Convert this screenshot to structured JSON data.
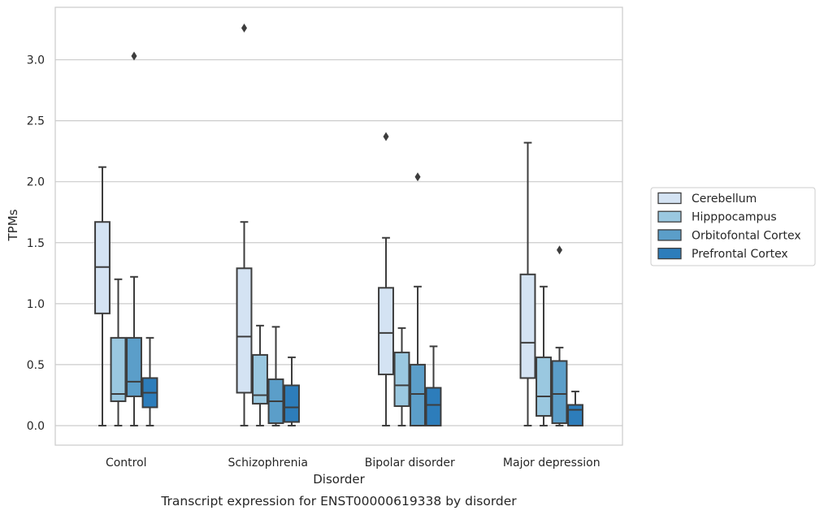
{
  "chart_data": {
    "type": "box",
    "xlabel": "Disorder",
    "ylabel": "TPMs",
    "caption": "Transcript expression for ENST00000619338 by disorder",
    "categories": [
      "Control",
      "Schizophrenia",
      "Bipolar disorder",
      "Major depression"
    ],
    "ylim": [
      -0.16,
      3.43
    ],
    "yticks": [
      "0.0",
      "0.5",
      "1.0",
      "1.5",
      "2.0",
      "2.5",
      "3.0"
    ],
    "grid": "horizontal",
    "legend_position": "right",
    "series": [
      {
        "name": "Cerebellum",
        "color": "#d4e3f3",
        "boxes": [
          {
            "whisker_low": 0.0,
            "q1": 0.92,
            "median": 1.3,
            "q3": 1.67,
            "whisker_high": 2.12,
            "outliers": []
          },
          {
            "whisker_low": 0.0,
            "q1": 0.27,
            "median": 0.73,
            "q3": 1.29,
            "whisker_high": 1.67,
            "outliers": [
              3.26
            ]
          },
          {
            "whisker_low": 0.0,
            "q1": 0.42,
            "median": 0.76,
            "q3": 1.13,
            "whisker_high": 1.54,
            "outliers": [
              2.37
            ]
          },
          {
            "whisker_low": 0.0,
            "q1": 0.39,
            "median": 0.68,
            "q3": 1.24,
            "whisker_high": 2.32,
            "outliers": []
          }
        ]
      },
      {
        "name": "Hipppocampus",
        "color": "#9ac8e0",
        "boxes": [
          {
            "whisker_low": 0.0,
            "q1": 0.2,
            "median": 0.26,
            "q3": 0.72,
            "whisker_high": 1.2,
            "outliers": []
          },
          {
            "whisker_low": 0.0,
            "q1": 0.18,
            "median": 0.25,
            "q3": 0.58,
            "whisker_high": 0.82,
            "outliers": []
          },
          {
            "whisker_low": 0.0,
            "q1": 0.16,
            "median": 0.33,
            "q3": 0.6,
            "whisker_high": 0.8,
            "outliers": []
          },
          {
            "whisker_low": 0.0,
            "q1": 0.08,
            "median": 0.24,
            "q3": 0.56,
            "whisker_high": 1.14,
            "outliers": []
          }
        ]
      },
      {
        "name": "Orbitofontal Cortex",
        "color": "#5b9ec9",
        "boxes": [
          {
            "whisker_low": 0.0,
            "q1": 0.24,
            "median": 0.36,
            "q3": 0.72,
            "whisker_high": 1.22,
            "outliers": [
              3.03
            ]
          },
          {
            "whisker_low": 0.0,
            "q1": 0.02,
            "median": 0.2,
            "q3": 0.38,
            "whisker_high": 0.81,
            "outliers": []
          },
          {
            "whisker_low": 0.0,
            "q1": 0.0,
            "median": 0.26,
            "q3": 0.5,
            "whisker_high": 1.14,
            "outliers": [
              2.04
            ]
          },
          {
            "whisker_low": 0.0,
            "q1": 0.02,
            "median": 0.26,
            "q3": 0.53,
            "whisker_high": 0.64,
            "outliers": [
              1.44
            ]
          }
        ]
      },
      {
        "name": "Prefrontal Cortex",
        "color": "#2d7dbb",
        "boxes": [
          {
            "whisker_low": 0.0,
            "q1": 0.15,
            "median": 0.27,
            "q3": 0.39,
            "whisker_high": 0.72,
            "outliers": []
          },
          {
            "whisker_low": 0.0,
            "q1": 0.03,
            "median": 0.15,
            "q3": 0.33,
            "whisker_high": 0.56,
            "outliers": []
          },
          {
            "whisker_low": 0.0,
            "q1": 0.0,
            "median": 0.17,
            "q3": 0.31,
            "whisker_high": 0.65,
            "outliers": []
          },
          {
            "whisker_low": 0.0,
            "q1": 0.0,
            "median": 0.13,
            "q3": 0.17,
            "whisker_high": 0.28,
            "outliers": []
          }
        ]
      }
    ]
  }
}
